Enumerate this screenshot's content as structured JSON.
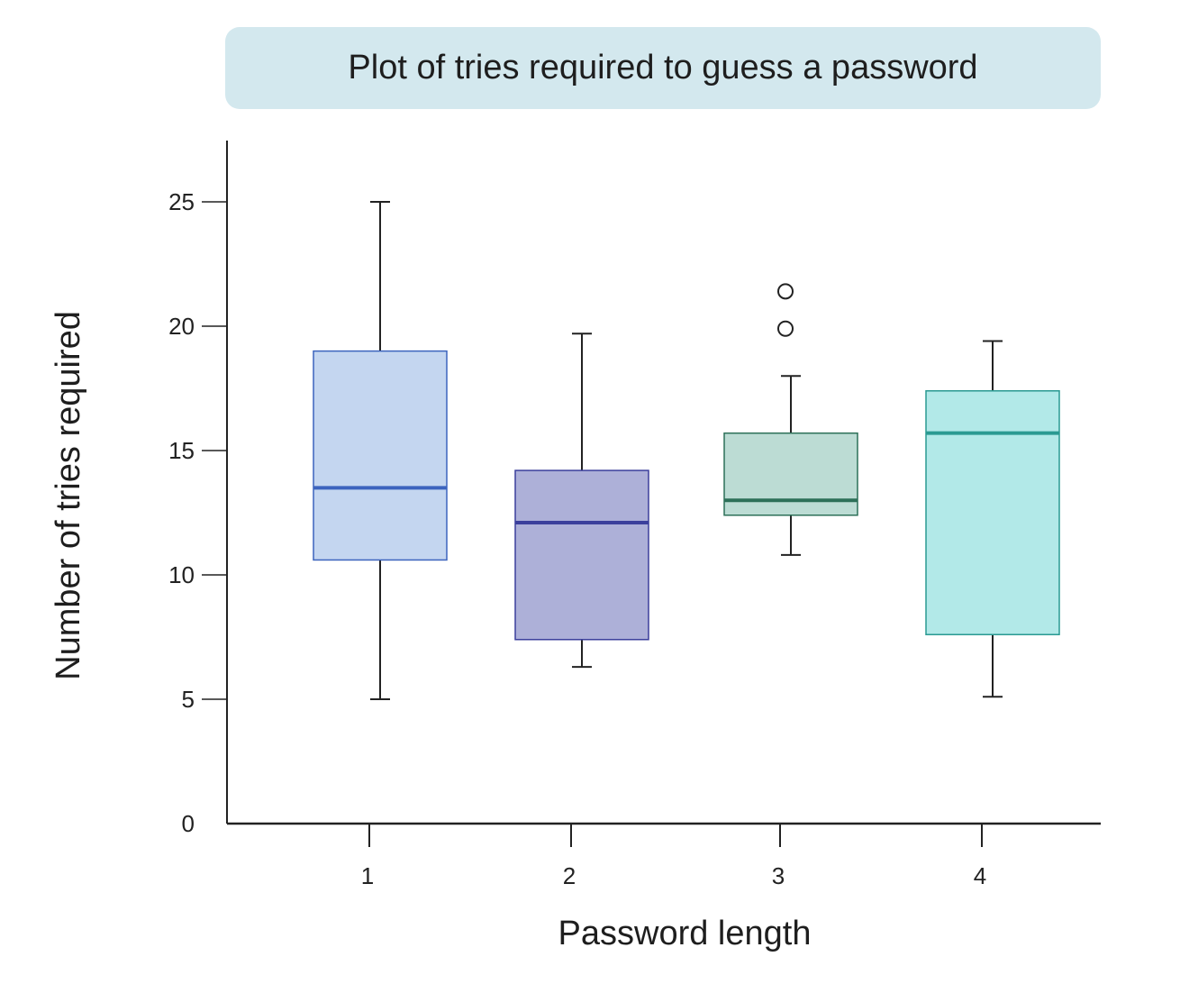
{
  "chart_data": {
    "type": "boxplot",
    "title": "Plot of tries required to guess a password",
    "xlabel": "Password length",
    "ylabel": "Number of tries required",
    "ylim": [
      0,
      27.5
    ],
    "yticks": [
      0,
      5,
      10,
      15,
      20,
      25
    ],
    "categories": [
      "1",
      "2",
      "3",
      "4"
    ],
    "boxes": [
      {
        "category": "1",
        "whisker_low": 5.0,
        "q1": 10.6,
        "median": 13.5,
        "q3": 19.0,
        "whisker_high": 25.0,
        "outliers": [],
        "fill": "#c4d6f0",
        "stroke": "#3c64be"
      },
      {
        "category": "2",
        "whisker_low": 6.3,
        "q1": 7.4,
        "median": 12.1,
        "q3": 14.2,
        "whisker_high": 19.7,
        "outliers": [],
        "fill": "#adb0d8",
        "stroke": "#3b3f9c"
      },
      {
        "category": "3",
        "whisker_low": 10.8,
        "q1": 12.4,
        "median": 13.0,
        "q3": 15.7,
        "whisker_high": 18.0,
        "outliers": [
          19.9,
          21.4
        ],
        "fill": "#bcdcd4",
        "stroke": "#2d7058"
      },
      {
        "category": "4",
        "whisker_low": 5.1,
        "q1": 7.6,
        "median": 15.7,
        "q3": 17.4,
        "whisker_high": 19.4,
        "outliers": [],
        "fill": "#b2e9e8",
        "stroke": "#2a9a92"
      }
    ]
  }
}
